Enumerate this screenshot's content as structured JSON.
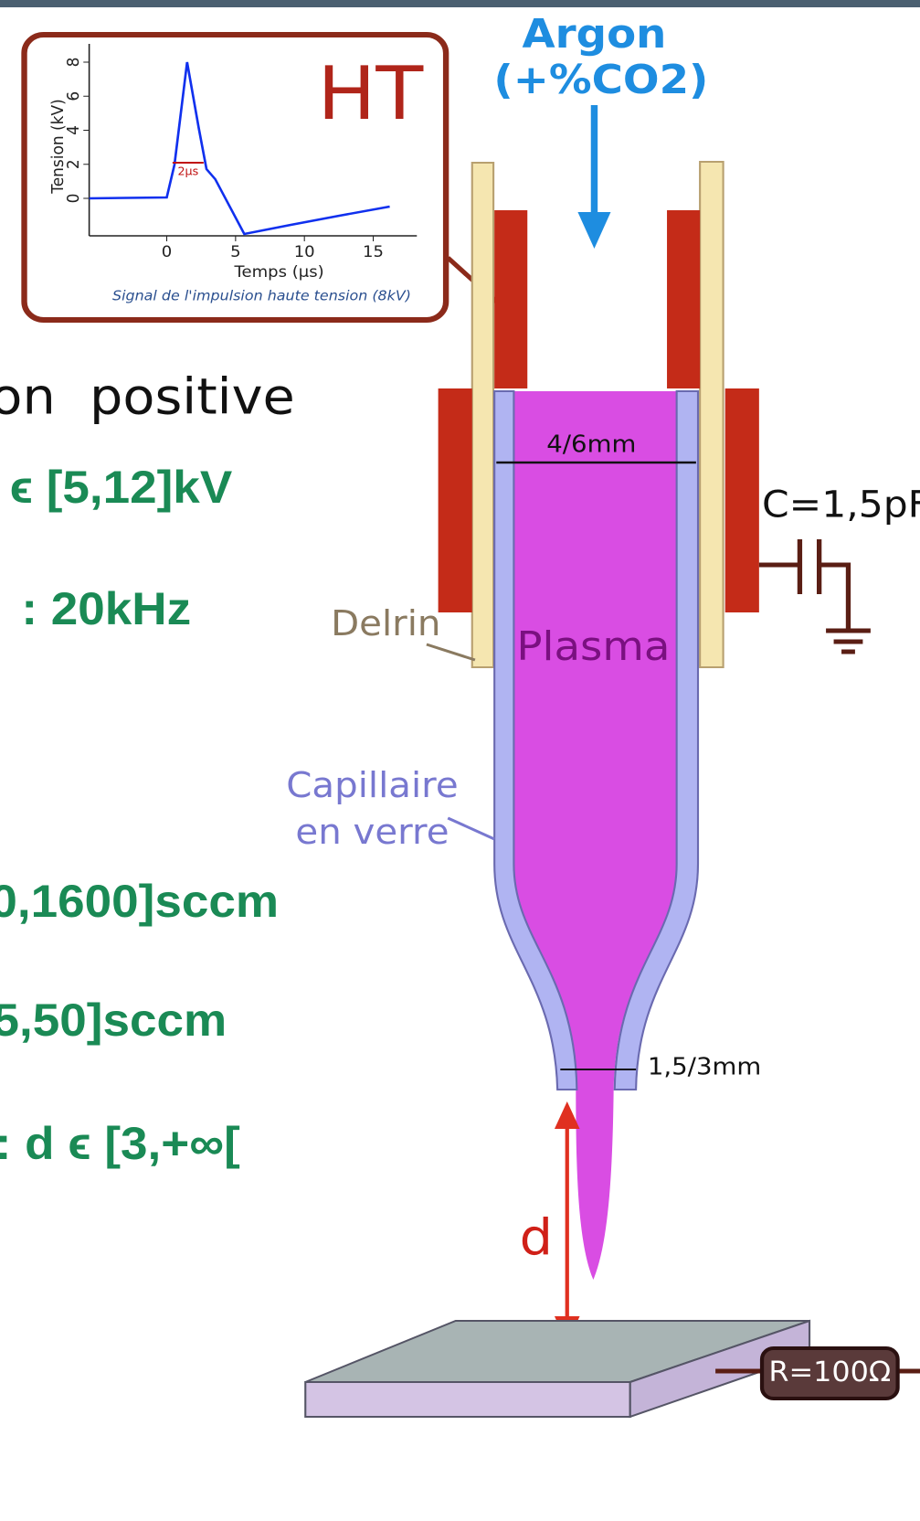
{
  "gas": {
    "name": "Argon",
    "mix": "(+%CO2)"
  },
  "inset": {
    "label": "HT",
    "y_axis_label": "Tension (kV)",
    "y_ticks": [
      "0",
      "2",
      "4",
      "6",
      "8"
    ],
    "x_ticks": [
      "0",
      "5",
      "10",
      "15"
    ],
    "x_axis_label": "Temps (µs)",
    "width_label": "2µs",
    "caption": "Signal de l'impulsion haute tension (8kV)"
  },
  "left_text": [
    "on positive",
    "ϵ [5,12]kV",
    ": 20kHz",
    "0,1600]sccm",
    "5,50]sccm",
    ": d ϵ [3,+∞["
  ],
  "labels": {
    "inner_diameter": "4/6mm",
    "capacitance": "C=1,5pF",
    "delrin": "Delrin",
    "plasma": "Plasma",
    "capillary_1": "Capillaire",
    "capillary_2": "en verre",
    "outlet": "1,5/3mm",
    "distance": "d",
    "resistance": "R=100Ω"
  }
}
